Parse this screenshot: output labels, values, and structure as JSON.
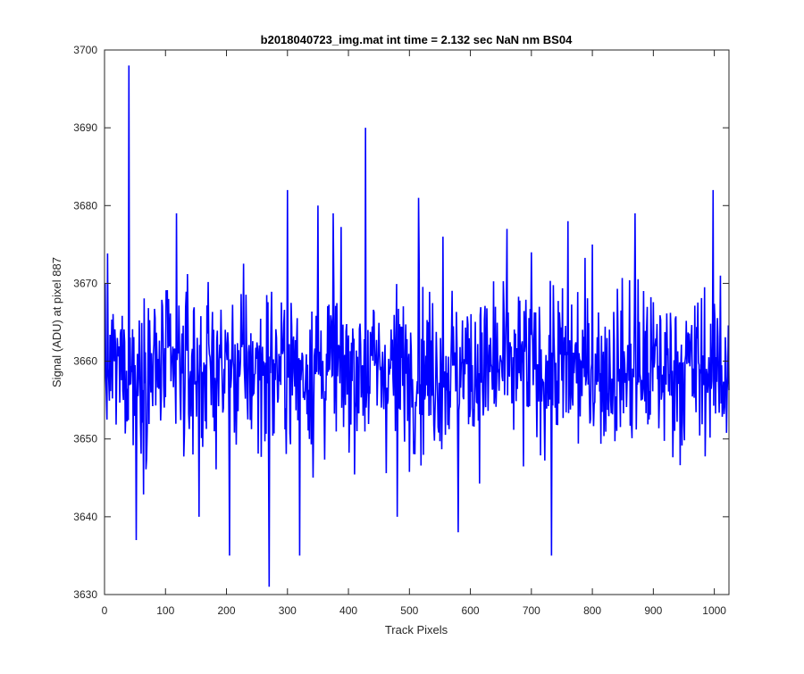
{
  "chart_data": {
    "type": "line",
    "title": "b2018040723_img.mat int time = 2.132 sec  NaN nm BS04",
    "xlabel": "Track Pixels",
    "ylabel": "Signal (ADU) at pixel 887",
    "xlim": [
      0,
      1024
    ],
    "ylim": [
      3630,
      3700
    ],
    "xticks": [
      0,
      100,
      200,
      300,
      400,
      500,
      600,
      700,
      800,
      900,
      1000
    ],
    "yticks": [
      3630,
      3640,
      3650,
      3660,
      3670,
      3680,
      3690,
      3700
    ],
    "grid": false,
    "box": true,
    "series": [
      {
        "color": "#0000ff",
        "n_points": 1024,
        "baseline_mean": 3659,
        "x": [
          1,
          40,
          52,
          118,
          155,
          205,
          270,
          300,
          320,
          350,
          375,
          428,
          480,
          515,
          555,
          580,
          660,
          700,
          733,
          760,
          800,
          870,
          998,
          1010
        ],
        "y": [
          3670,
          3698,
          3637,
          3679,
          3640,
          3635,
          3631,
          3682,
          3635,
          3680,
          3679,
          3690,
          3640,
          3681,
          3676,
          3638,
          3677,
          3674,
          3635,
          3678,
          3675,
          3679,
          3682,
          3671
        ]
      }
    ]
  }
}
